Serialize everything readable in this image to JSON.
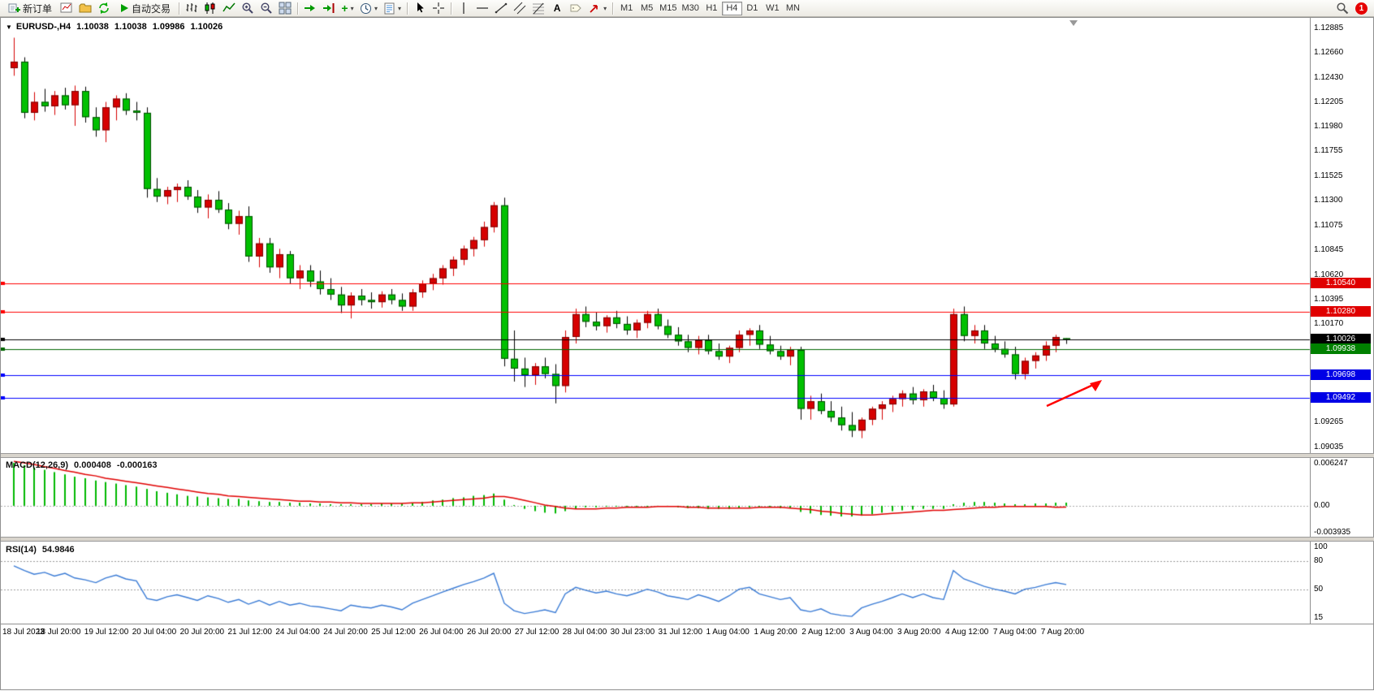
{
  "toolbar": {
    "new_order_label": "新订单",
    "autotrading_label": "自动交易",
    "timeframes": [
      "M1",
      "M5",
      "M15",
      "M30",
      "H1",
      "H4",
      "D1",
      "W1",
      "MN"
    ],
    "active_timeframe": "H4",
    "notification_count": "1"
  },
  "chart_header": {
    "symbol_period": "EURUSD-,H4",
    "open": "1.10038",
    "high": "1.10038",
    "low": "1.09986",
    "close": "1.10026"
  },
  "indicators": {
    "macd": {
      "label": "MACD(12,26,9)",
      "value_main": "0.000408",
      "value_signal": "-0.000163",
      "axis_labels": [
        "0.006247",
        "0.00",
        "-0.003935"
      ]
    },
    "rsi": {
      "label": "RSI(14)",
      "value": "54.9846",
      "axis_labels": [
        "100",
        "80",
        "50",
        "15"
      ]
    }
  },
  "colors": {
    "bull": "#d60000",
    "bear": "#00c000",
    "macd_hist": "#00b800",
    "macd_signal": "#e00000",
    "rsi_line": "#3a7bd5",
    "annotation_arrow": "#ff0000"
  },
  "chart_data": {
    "type": "candlestick",
    "symbol": "EURUSD-",
    "timeframe": "H4",
    "price_range": [
      1.08983,
      1.12945
    ],
    "price_grid_labels": [
      "1.12885",
      "1.12660",
      "1.12430",
      "1.12205",
      "1.11980",
      "1.11755",
      "1.11525",
      "1.11300",
      "1.11075",
      "1.10845",
      "1.10620",
      "1.10395",
      "1.10170",
      "1.09265",
      "1.09035"
    ],
    "hlines": [
      {
        "price": 1.1054,
        "color": "#ff0000",
        "tag": "1.10540",
        "tag_bg": "#e00000"
      },
      {
        "price": 1.1028,
        "color": "#ff0000",
        "tag": "1.10280",
        "tag_bg": "#e00000"
      },
      {
        "price": 1.10026,
        "color": "#000000",
        "tag": "1.10026",
        "tag_bg": "#000000"
      },
      {
        "price": 1.09938,
        "color": "#006600",
        "tag": "1.09938",
        "tag_bg": "#008000"
      },
      {
        "price": 1.09698,
        "color": "#0000ff",
        "tag": "1.09698",
        "tag_bg": "#0000e6"
      },
      {
        "price": 1.09492,
        "color": "#0000ff",
        "tag": "1.09492",
        "tag_bg": "#0000e6"
      }
    ],
    "time_labels": [
      "18 Jul 2023",
      "18 Jul 20:00",
      "19 Jul 12:00",
      "20 Jul 04:00",
      "20 Jul 20:00",
      "21 Jul 12:00",
      "24 Jul 04:00",
      "24 Jul 20:00",
      "25 Jul 12:00",
      "26 Jul 04:00",
      "26 Jul 20:00",
      "27 Jul 12:00",
      "28 Jul 04:00",
      "30 Jul 23:00",
      "31 Jul 12:00",
      "1 Aug 04:00",
      "1 Aug 20:00",
      "2 Aug 12:00",
      "3 Aug 04:00",
      "3 Aug 20:00",
      "4 Aug 12:00",
      "7 Aug 04:00",
      "7 Aug 20:00"
    ],
    "ohlc": [
      [
        1.1252,
        1.128,
        1.1245,
        1.1258
      ],
      [
        1.1258,
        1.1262,
        1.1206,
        1.1211
      ],
      [
        1.1211,
        1.123,
        1.1204,
        1.1221
      ],
      [
        1.1221,
        1.1233,
        1.1212,
        1.1217
      ],
      [
        1.1217,
        1.1231,
        1.1209,
        1.1227
      ],
      [
        1.1227,
        1.1234,
        1.1214,
        1.1218
      ],
      [
        1.1218,
        1.1236,
        1.1199,
        1.1231
      ],
      [
        1.1231,
        1.1235,
        1.1202,
        1.1207
      ],
      [
        1.1207,
        1.1216,
        1.1189,
        1.1195
      ],
      [
        1.1195,
        1.1221,
        1.1184,
        1.1216
      ],
      [
        1.1216,
        1.1227,
        1.1204,
        1.1224
      ],
      [
        1.1224,
        1.1229,
        1.1209,
        1.1213
      ],
      [
        1.1213,
        1.1221,
        1.1204,
        1.1211
      ],
      [
        1.1211,
        1.1216,
        1.1133,
        1.1141
      ],
      [
        1.1141,
        1.1151,
        1.1129,
        1.1134
      ],
      [
        1.1134,
        1.1143,
        1.1127,
        1.114
      ],
      [
        1.114,
        1.1146,
        1.1129,
        1.1143
      ],
      [
        1.1143,
        1.1149,
        1.1131,
        1.1134
      ],
      [
        1.1134,
        1.114,
        1.1119,
        1.1124
      ],
      [
        1.1124,
        1.1136,
        1.1114,
        1.1131
      ],
      [
        1.1131,
        1.1139,
        1.1119,
        1.1122
      ],
      [
        1.1122,
        1.1128,
        1.1104,
        1.1109
      ],
      [
        1.1109,
        1.1121,
        1.1099,
        1.1116
      ],
      [
        1.1116,
        1.1125,
        1.1074,
        1.1079
      ],
      [
        1.1079,
        1.1096,
        1.1069,
        1.1091
      ],
      [
        1.1091,
        1.1096,
        1.1064,
        1.1069
      ],
      [
        1.1069,
        1.1086,
        1.1059,
        1.1081
      ],
      [
        1.1081,
        1.1084,
        1.1054,
        1.1059
      ],
      [
        1.1059,
        1.1071,
        1.1049,
        1.1066
      ],
      [
        1.1066,
        1.1071,
        1.1051,
        1.1056
      ],
      [
        1.1056,
        1.1066,
        1.1044,
        1.1049
      ],
      [
        1.1049,
        1.1059,
        1.1039,
        1.1044
      ],
      [
        1.1044,
        1.1051,
        1.1027,
        1.1034
      ],
      [
        1.1034,
        1.1046,
        1.1022,
        1.1043
      ],
      [
        1.1043,
        1.1049,
        1.1034,
        1.1039
      ],
      [
        1.1039,
        1.1046,
        1.1031,
        1.1037
      ],
      [
        1.1037,
        1.1047,
        1.1032,
        1.1044
      ],
      [
        1.1044,
        1.1049,
        1.1035,
        1.1039
      ],
      [
        1.1039,
        1.1045,
        1.1029,
        1.1033
      ],
      [
        1.1033,
        1.1049,
        1.1029,
        1.1046
      ],
      [
        1.1046,
        1.1057,
        1.1041,
        1.1054
      ],
      [
        1.1054,
        1.1063,
        1.1048,
        1.1059
      ],
      [
        1.1059,
        1.1071,
        1.1053,
        1.1068
      ],
      [
        1.1068,
        1.1079,
        1.1061,
        1.1076
      ],
      [
        1.1076,
        1.1089,
        1.1071,
        1.1086
      ],
      [
        1.1086,
        1.1097,
        1.1079,
        1.1094
      ],
      [
        1.1094,
        1.1111,
        1.1088,
        1.1106
      ],
      [
        1.1106,
        1.1129,
        1.1101,
        1.1126
      ],
      [
        1.1126,
        1.1133,
        1.0978,
        1.0985
      ],
      [
        1.0985,
        1.1011,
        1.0964,
        1.0976
      ],
      [
        1.0976,
        1.0986,
        1.0959,
        1.097
      ],
      [
        1.097,
        1.0981,
        1.0961,
        1.0978
      ],
      [
        1.0978,
        1.0986,
        1.0967,
        1.0971
      ],
      [
        1.0971,
        1.098,
        1.0944,
        1.096
      ],
      [
        1.096,
        1.1011,
        1.0954,
        1.1005
      ],
      [
        1.1005,
        1.1031,
        1.0999,
        1.1026
      ],
      [
        1.1026,
        1.1033,
        1.1014,
        1.1019
      ],
      [
        1.1019,
        1.1028,
        1.1011,
        1.1015
      ],
      [
        1.1015,
        1.1025,
        1.1009,
        1.1023
      ],
      [
        1.1023,
        1.1029,
        1.1013,
        1.1017
      ],
      [
        1.1017,
        1.1024,
        1.1007,
        1.1011
      ],
      [
        1.1011,
        1.1021,
        1.1004,
        1.1018
      ],
      [
        1.1018,
        1.1029,
        1.1013,
        1.1026
      ],
      [
        1.1026,
        1.1031,
        1.1012,
        1.1015
      ],
      [
        1.1015,
        1.1021,
        1.1004,
        1.1007
      ],
      [
        1.1007,
        1.1014,
        1.0997,
        1.1001
      ],
      [
        1.1001,
        1.1007,
        1.0991,
        1.0995
      ],
      [
        1.0995,
        1.1006,
        1.0989,
        1.1002
      ],
      [
        1.1002,
        1.1007,
        1.0989,
        1.0992
      ],
      [
        1.0992,
        1.0999,
        1.0984,
        1.0987
      ],
      [
        1.0987,
        1.0997,
        1.0981,
        1.0995
      ],
      [
        1.0995,
        1.1011,
        1.0991,
        1.1007
      ],
      [
        1.1007,
        1.1013,
        1.0997,
        1.1011
      ],
      [
        1.1011,
        1.1016,
        1.0994,
        1.0998
      ],
      [
        1.0998,
        1.1006,
        1.0989,
        1.0992
      ],
      [
        1.0992,
        1.0997,
        1.0984,
        1.0987
      ],
      [
        1.0987,
        1.0996,
        1.0979,
        1.0993
      ],
      [
        1.0993,
        1.0996,
        1.0929,
        1.0939
      ],
      [
        1.0939,
        1.0951,
        1.0929,
        1.0946
      ],
      [
        1.0946,
        1.0953,
        1.0934,
        1.0937
      ],
      [
        1.0937,
        1.0946,
        1.0927,
        1.0931
      ],
      [
        1.0931,
        1.0941,
        1.0919,
        1.0924
      ],
      [
        1.0924,
        1.0936,
        1.0913,
        1.0919
      ],
      [
        1.0919,
        1.0931,
        1.0912,
        1.0929
      ],
      [
        1.0929,
        1.0941,
        1.0924,
        1.0939
      ],
      [
        1.0939,
        1.0946,
        1.0929,
        1.0943
      ],
      [
        1.0943,
        1.0951,
        1.0936,
        1.0948
      ],
      [
        1.0948,
        1.0956,
        1.0941,
        1.0953
      ],
      [
        1.0953,
        1.0959,
        1.0943,
        1.0947
      ],
      [
        1.0947,
        1.0957,
        1.0941,
        1.0955
      ],
      [
        1.0955,
        1.0961,
        1.0946,
        1.0949
      ],
      [
        1.0949,
        1.0956,
        1.0939,
        1.0943
      ],
      [
        1.0943,
        1.1031,
        1.0941,
        1.1026
      ],
      [
        1.1026,
        1.1033,
        1.1001,
        1.1006
      ],
      [
        1.1006,
        1.1016,
        1.0999,
        1.1011
      ],
      [
        1.1011,
        1.1016,
        1.0994,
        1.0999
      ],
      [
        1.0999,
        1.1006,
        1.0991,
        1.0994
      ],
      [
        1.0994,
        1.1001,
        1.0986,
        1.0989
      ],
      [
        1.0989,
        1.0996,
        1.0966,
        1.0971
      ],
      [
        1.0971,
        1.0986,
        1.0966,
        1.0983
      ],
      [
        1.0983,
        1.0991,
        1.0976,
        1.0988
      ],
      [
        1.0988,
        1.1001,
        1.0983,
        1.0997
      ],
      [
        1.0997,
        1.1007,
        1.0991,
        1.1005
      ],
      [
        1.10038,
        1.10038,
        1.09986,
        1.10026
      ]
    ],
    "macd": {
      "range": [
        -0.003935,
        0.006247
      ],
      "histogram": [
        0.0056,
        0.0053,
        0.005,
        0.0047,
        0.0044,
        0.0041,
        0.0038,
        0.0036,
        0.0033,
        0.0031,
        0.0029,
        0.0027,
        0.0025,
        0.0022,
        0.0019,
        0.0017,
        0.0015,
        0.0013,
        0.0012,
        0.0011,
        0.001,
        0.0009,
        0.0009,
        0.0007,
        0.0006,
        0.0005,
        0.0005,
        0.0004,
        0.0004,
        0.0003,
        0.0003,
        0.0002,
        0.0002,
        0.0002,
        0.0002,
        0.0002,
        0.0003,
        0.0003,
        0.0003,
        0.0004,
        0.0005,
        0.0007,
        0.0008,
        0.001,
        0.0011,
        0.0013,
        0.0014,
        0.0016,
        0.0008,
        0.0001,
        -0.0004,
        -0.0007,
        -0.0009,
        -0.001,
        -0.0007,
        -0.0004,
        -0.0002,
        -0.0002,
        -0.0001,
        -0.0001,
        -0.0001,
        -0.0001,
        0.0,
        0.0,
        -0.0001,
        -0.0002,
        -0.0003,
        -0.0003,
        -0.0004,
        -0.0004,
        -0.0004,
        -0.0003,
        -0.0002,
        -0.0001,
        -0.0002,
        -0.0003,
        -0.0003,
        -0.0008,
        -0.001,
        -0.0012,
        -0.0013,
        -0.0014,
        -0.0014,
        -0.0013,
        -0.0011,
        -0.0009,
        -0.0007,
        -0.0006,
        -0.0005,
        -0.0004,
        -0.0004,
        -0.0004,
        0.0002,
        0.0004,
        0.0005,
        0.0005,
        0.0004,
        0.0003,
        0.0002,
        0.0002,
        0.0003,
        0.0003,
        0.0004,
        0.000408
      ],
      "signal": [
        0.0058,
        0.0056,
        0.0054,
        0.0051,
        0.0049,
        0.0046,
        0.0044,
        0.0041,
        0.0039,
        0.0036,
        0.0034,
        0.0032,
        0.003,
        0.0028,
        0.0026,
        0.0024,
        0.0022,
        0.002,
        0.0018,
        0.0016,
        0.0015,
        0.0013,
        0.0012,
        0.0011,
        0.001,
        0.0009,
        0.0008,
        0.0007,
        0.0006,
        0.0006,
        0.0005,
        0.0005,
        0.0004,
        0.0004,
        0.0003,
        0.0003,
        0.0003,
        0.0003,
        0.0003,
        0.0004,
        0.0004,
        0.0005,
        0.0006,
        0.0007,
        0.0008,
        0.0009,
        0.001,
        0.0012,
        0.0012,
        0.001,
        0.0007,
        0.0004,
        0.0001,
        -0.0001,
        -0.0003,
        -0.0004,
        -0.0004,
        -0.0004,
        -0.0003,
        -0.0003,
        -0.0002,
        -0.0002,
        -0.0002,
        -0.0001,
        -0.0001,
        -0.0001,
        -0.0002,
        -0.0002,
        -0.0003,
        -0.0003,
        -0.0003,
        -0.0003,
        -0.0003,
        -0.0002,
        -0.0002,
        -0.0002,
        -0.0003,
        -0.0004,
        -0.0005,
        -0.0007,
        -0.0008,
        -0.001,
        -0.0011,
        -0.0012,
        -0.0012,
        -0.0011,
        -0.001,
        -0.0009,
        -0.0008,
        -0.0007,
        -0.0006,
        -0.0006,
        -0.0005,
        -0.0004,
        -0.0003,
        -0.0002,
        -0.0002,
        -0.0001,
        -0.0001,
        -0.0001,
        -0.0001,
        -0.0001,
        -0.0002,
        -0.000163
      ]
    },
    "rsi": {
      "range": [
        15,
        100
      ],
      "levels": [
        80,
        50
      ],
      "values": [
        75,
        70,
        66,
        68,
        64,
        67,
        62,
        60,
        57,
        62,
        65,
        61,
        59,
        40,
        38,
        42,
        44,
        41,
        38,
        43,
        40,
        36,
        39,
        34,
        38,
        33,
        37,
        33,
        35,
        32,
        31,
        29,
        27,
        33,
        31,
        30,
        33,
        31,
        28,
        35,
        39,
        43,
        47,
        51,
        55,
        58,
        62,
        67,
        35,
        27,
        24,
        26,
        28,
        25,
        45,
        52,
        49,
        46,
        48,
        45,
        43,
        46,
        50,
        47,
        43,
        41,
        39,
        44,
        41,
        37,
        43,
        50,
        52,
        45,
        42,
        39,
        41,
        28,
        26,
        29,
        24,
        22,
        21,
        30,
        34,
        37,
        41,
        45,
        41,
        45,
        41,
        39,
        70,
        61,
        57,
        53,
        50,
        48,
        45,
        50,
        52,
        55,
        57,
        54.9846
      ]
    },
    "annotations": [
      {
        "type": "arrow",
        "color": "#ff0000",
        "direction": "up-right"
      }
    ]
  }
}
